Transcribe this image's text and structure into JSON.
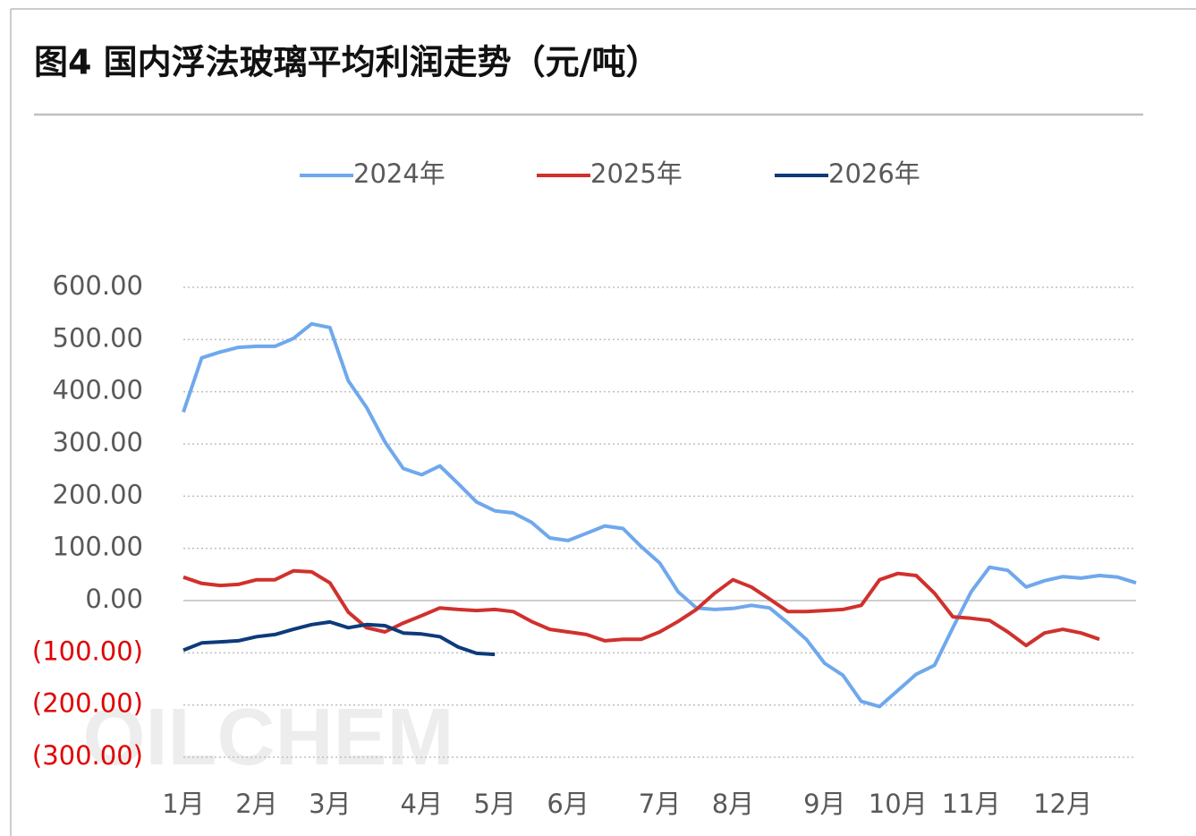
{
  "chart_data": {
    "type": "line",
    "title": "图4  国内浮法玻璃平均利润走势（元/吨）",
    "watermark": "OILCHEM",
    "categories": [
      "1月",
      null,
      null,
      null,
      "2月",
      null,
      null,
      null,
      "3月",
      null,
      null,
      null,
      null,
      "4月",
      null,
      null,
      null,
      "5月",
      null,
      null,
      null,
      "6月",
      null,
      null,
      null,
      null,
      "7月",
      null,
      null,
      null,
      "8月",
      null,
      null,
      null,
      null,
      "9月",
      null,
      null,
      null,
      "10月",
      null,
      null,
      null,
      "11月",
      null,
      null,
      null,
      null,
      "12月",
      null,
      null,
      null,
      null
    ],
    "series": [
      {
        "name": "2024年",
        "color": "#6fa8ec",
        "values": [
          361,
          465,
          476,
          485,
          487,
          487,
          502,
          530,
          523,
          421,
          370,
          304,
          253,
          241,
          258,
          224,
          189,
          172,
          168,
          150,
          120,
          115,
          129,
          143,
          138,
          103,
          72,
          17,
          -14,
          -17,
          -15,
          -9,
          -14,
          -43,
          -74,
          -120,
          -143,
          -193,
          -203,
          -172,
          -141,
          -124,
          -52,
          17,
          64,
          58,
          26,
          38,
          46,
          43,
          48,
          45,
          34
        ]
      },
      {
        "name": "2025年",
        "color": "#d0312d",
        "values": [
          45,
          33,
          29,
          31,
          40,
          40,
          57,
          55,
          34,
          -22,
          -52,
          -60,
          -43,
          -29,
          -14,
          -17,
          -19,
          -17,
          -21,
          -40,
          -55,
          -60,
          -65,
          -77,
          -74,
          -74,
          -60,
          -40,
          -17,
          14,
          40,
          26,
          3,
          -21,
          -21,
          -19,
          -17,
          -9,
          40,
          52,
          48,
          14,
          -31,
          -34,
          -38,
          -60,
          -86,
          -62,
          -55,
          -62,
          -74,
          null,
          null
        ]
      },
      {
        "name": "2026年",
        "color": "#0d3b7a",
        "values": [
          -95,
          -81,
          -79,
          -77,
          -69,
          -65,
          -55,
          -46,
          -41,
          -52,
          -46,
          -48,
          -62,
          -64,
          -69,
          -89,
          -101,
          -103,
          null,
          null,
          null,
          null,
          null,
          null,
          null,
          null,
          null,
          null,
          null,
          null,
          null,
          null,
          null,
          null,
          null,
          null,
          null,
          null,
          null,
          null,
          null,
          null,
          null,
          null,
          null,
          null,
          null,
          null,
          null,
          null,
          null,
          null,
          null
        ]
      }
    ],
    "ylim": [
      -300,
      600
    ],
    "yticks": [
      {
        "value": 600,
        "label": "600.00"
      },
      {
        "value": 500,
        "label": "500.00"
      },
      {
        "value": 400,
        "label": "400.00"
      },
      {
        "value": 300,
        "label": "300.00"
      },
      {
        "value": 200,
        "label": "200.00"
      },
      {
        "value": 100,
        "label": "100.00"
      },
      {
        "value": 0,
        "label": "0.00"
      },
      {
        "value": -100,
        "label": "(100.00)"
      },
      {
        "value": -200,
        "label": "(200.00)"
      },
      {
        "value": -300,
        "label": "(300.00)"
      }
    ],
    "negative_tick_color": "#e00000",
    "grid": true,
    "legend": "top"
  }
}
